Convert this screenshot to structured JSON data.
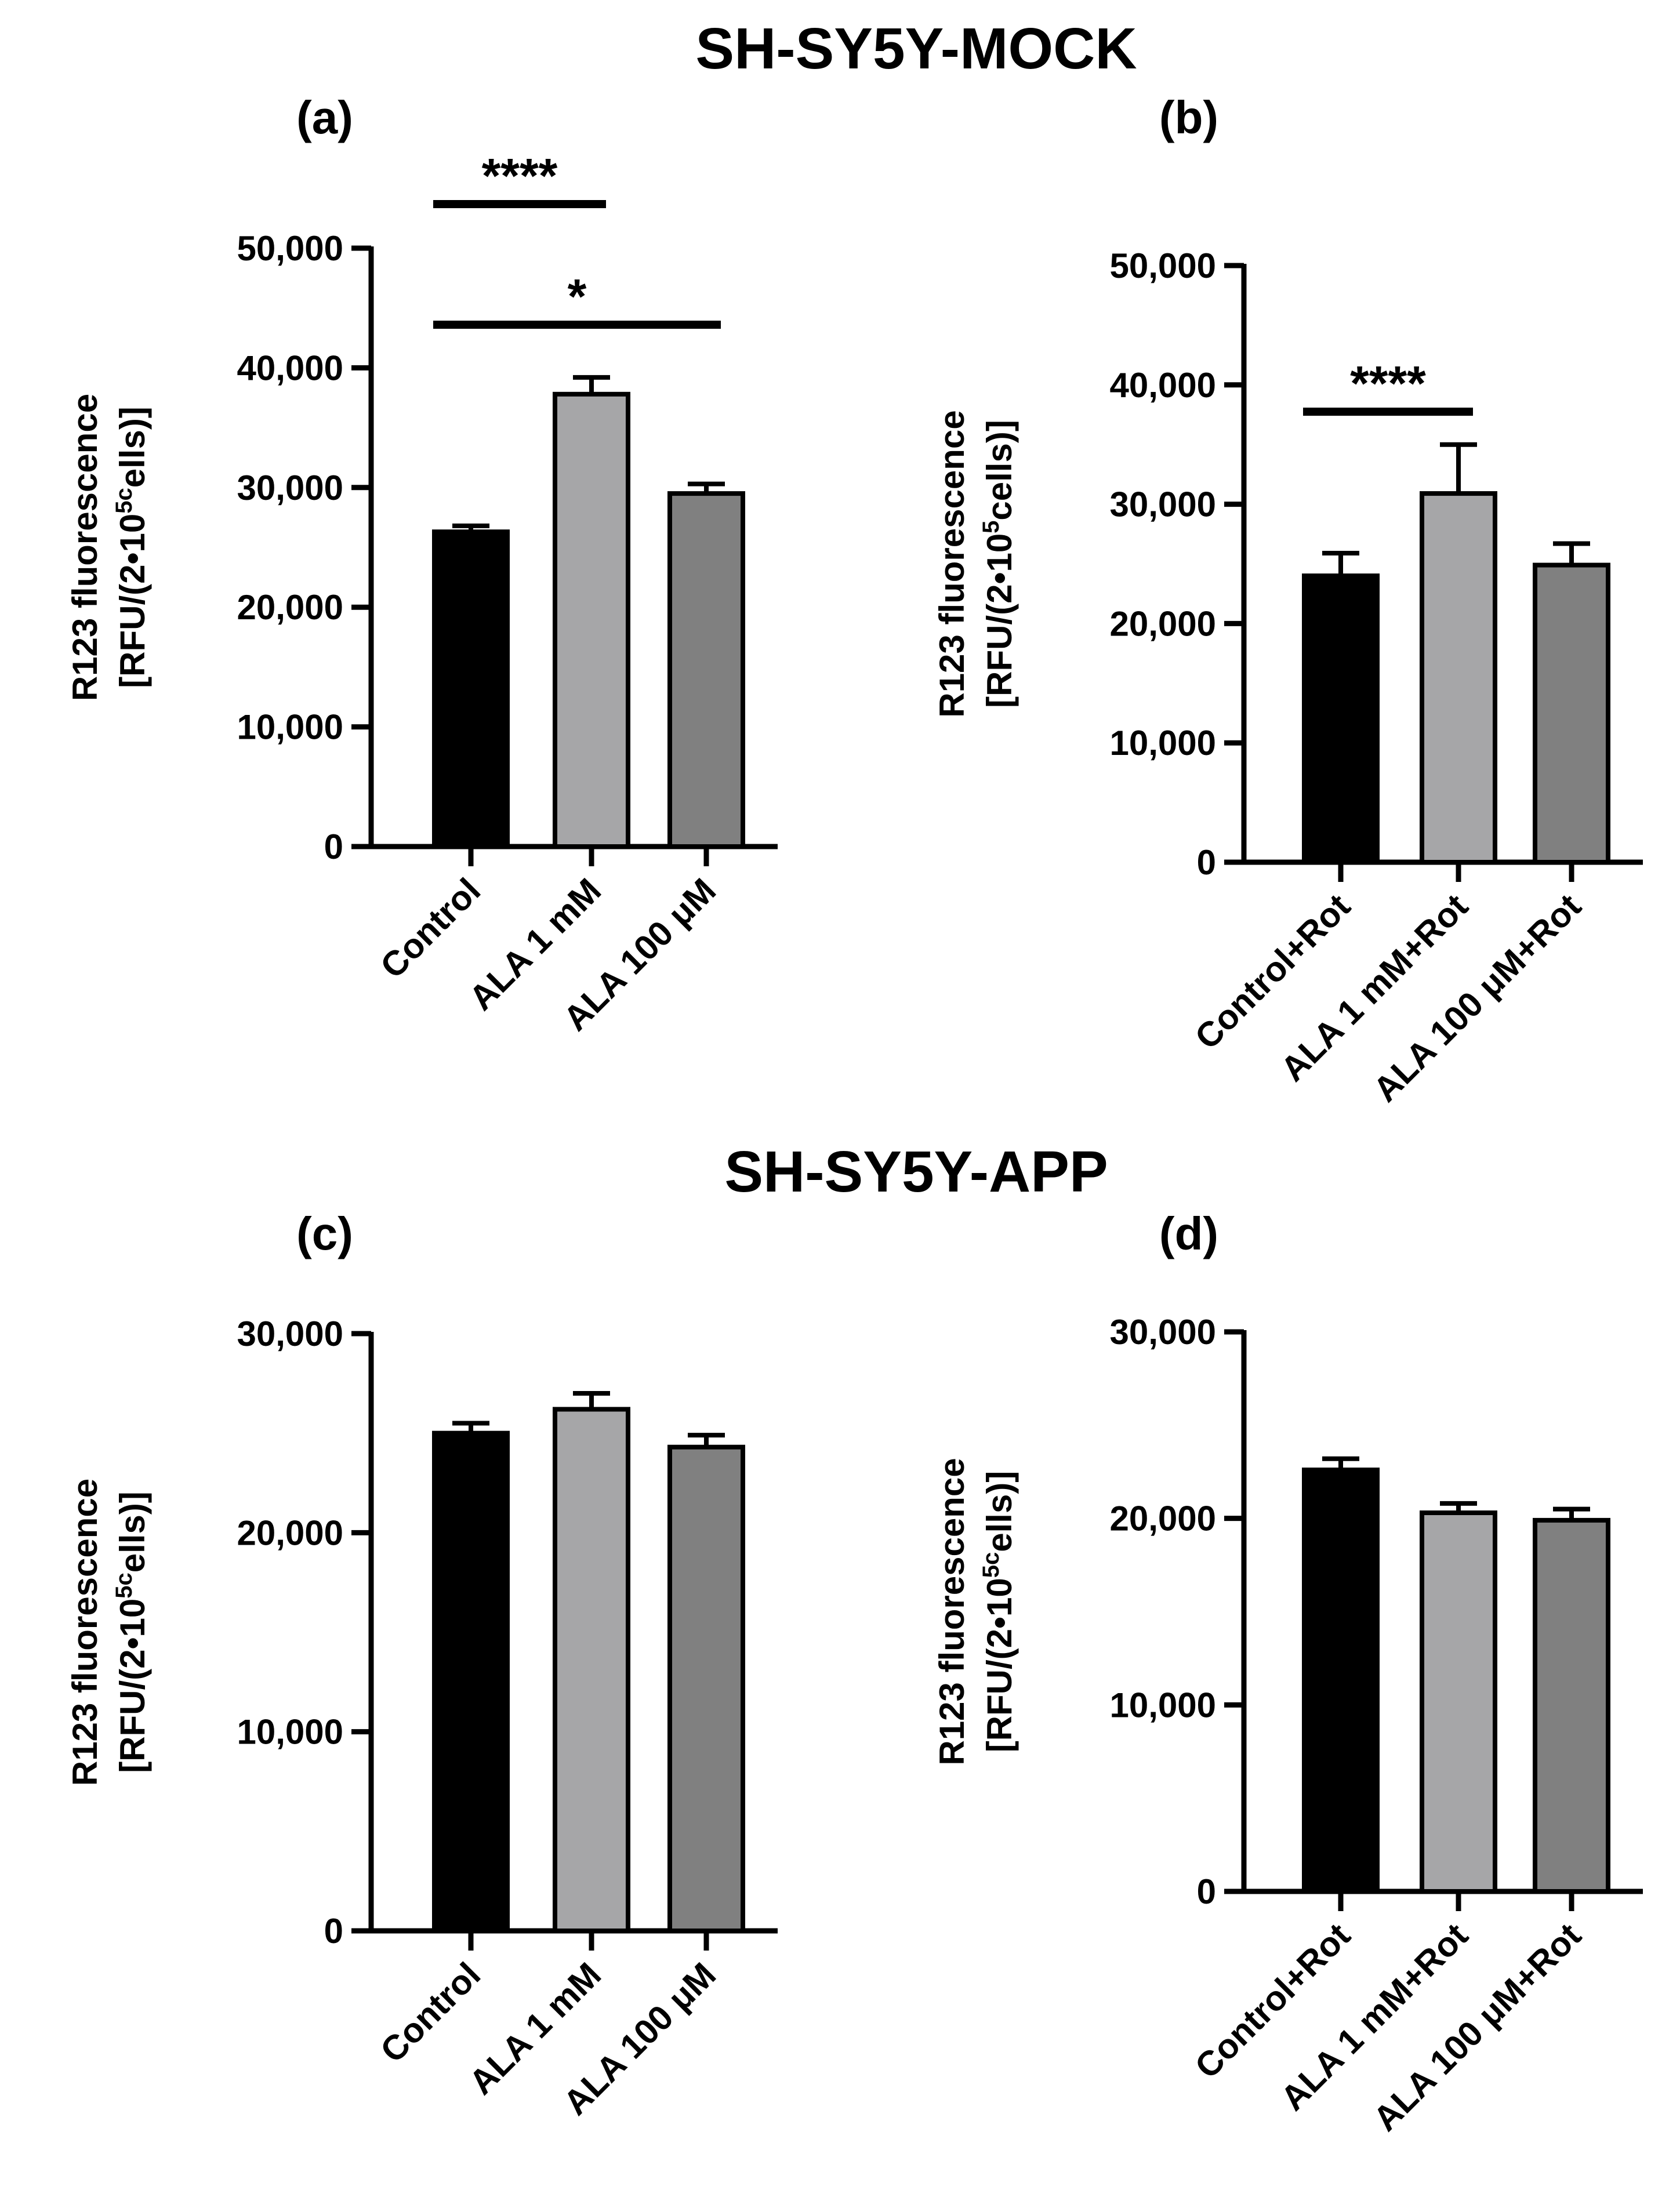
{
  "section_titles": [
    "SH-SY5Y-MOCK",
    "SH-SY5Y-APP"
  ],
  "colors": {
    "control": "#000000",
    "ala_1mm": "#a6a6a8",
    "ala_100um": "#808080",
    "axis": "#000000"
  },
  "chart_data": [
    {
      "panel": "(a)",
      "type": "bar",
      "categories": [
        "Control",
        "ALA 1 mM",
        "ALA 100 μM"
      ],
      "values": [
        26300,
        37800,
        29500
      ],
      "errors": [
        500,
        1400,
        800
      ],
      "ylabel_line1": "R123 fluorescence",
      "ylabel_line2": "[RFU/(2•10",
      "ylabel_sup": "5",
      "ylabel_sub": "c",
      "ylabel_tail": "ells)]",
      "ylim": [
        0,
        50000
      ],
      "yticks": [
        0,
        10000,
        20000,
        30000,
        40000,
        50000
      ],
      "ytick_labels": [
        "0",
        "10,000",
        "20,000",
        "30,000",
        "40,000",
        "50,000"
      ],
      "significance": [
        {
          "from": 0,
          "to": 1,
          "label": "****"
        },
        {
          "from": 0,
          "to": 2,
          "label": "*"
        }
      ]
    },
    {
      "panel": "(b)",
      "type": "bar",
      "categories": [
        "Control+Rot",
        "ALA 1 mM+Rot",
        "ALA 100 μM+Rot"
      ],
      "values": [
        24000,
        30900,
        24900
      ],
      "errors": [
        1900,
        4100,
        1800
      ],
      "ylabel_line1": "R123 fluorescence",
      "ylabel_line2": "[RFU/(2•10",
      "ylabel_sup": "5",
      "ylabel_sub": "",
      "ylabel_tail": "cells)]",
      "ylim": [
        0,
        50000
      ],
      "yticks": [
        0,
        10000,
        20000,
        30000,
        40000,
        50000
      ],
      "ytick_labels": [
        "0",
        "10,000",
        "20,000",
        "30,000",
        "40,000",
        "50,000"
      ],
      "significance": [
        {
          "from": 0,
          "to": 1,
          "label": "****"
        }
      ]
    },
    {
      "panel": "(c)",
      "type": "bar",
      "categories": [
        "Control",
        "ALA 1 mM",
        "ALA 100 μM"
      ],
      "values": [
        25000,
        26200,
        24300
      ],
      "errors": [
        500,
        800,
        600
      ],
      "ylabel_line1": "R123 fluorescence",
      "ylabel_line2": "[RFU/(2•10",
      "ylabel_sup": "5",
      "ylabel_sub": "c",
      "ylabel_tail": "ells)]",
      "ylim": [
        0,
        30000
      ],
      "yticks": [
        0,
        10000,
        20000,
        30000
      ],
      "ytick_labels": [
        "0",
        "10,000",
        "20,000",
        "30,000"
      ],
      "significance": []
    },
    {
      "panel": "(d)",
      "type": "bar",
      "categories": [
        "Control+Rot",
        "ALA 1 mM+Rot",
        "ALA 100 μM+Rot"
      ],
      "values": [
        22600,
        20300,
        19900
      ],
      "errors": [
        600,
        500,
        600
      ],
      "ylabel_line1": "R123 fluorescence",
      "ylabel_line2": "[RFU/(2•10",
      "ylabel_sup": "5",
      "ylabel_sub": "c",
      "ylabel_tail": "ells)]",
      "ylim": [
        0,
        30000
      ],
      "yticks": [
        0,
        10000,
        20000,
        30000
      ],
      "ytick_labels": [
        "0",
        "10,000",
        "20,000",
        "30,000"
      ],
      "significance": []
    }
  ]
}
